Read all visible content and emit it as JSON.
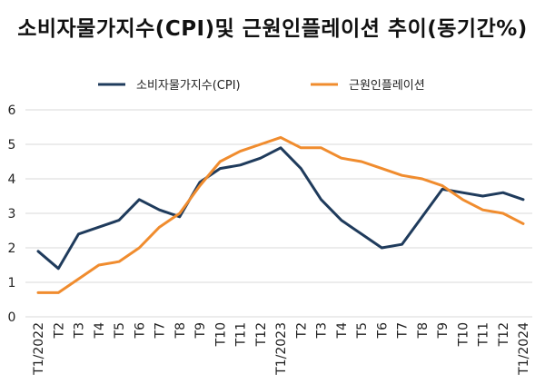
{
  "title": "소비자물가지수(CPI)및  근원인플레이션  추이(동기간%)",
  "chart_data": {
    "type": "line",
    "title": "소비자물가지수(CPI)및  근원인플레이션  추이(동기간%)",
    "categories": [
      "T1/2022",
      "T2",
      "T3",
      "T4",
      "T5",
      "T6",
      "T7",
      "T8",
      "T9",
      "T10",
      "T11",
      "T12",
      "T1/2023",
      "T2",
      "T3",
      "T4",
      "T5",
      "T6",
      "T7",
      "T8",
      "T9",
      "T10",
      "T11",
      "T12",
      "T1/2024"
    ],
    "series": [
      {
        "name": "소비자물가지수(CPI)",
        "color": "#1f3b5c",
        "values": [
          1.9,
          1.4,
          2.4,
          2.6,
          2.8,
          3.4,
          3.1,
          2.9,
          3.9,
          4.3,
          4.4,
          4.6,
          4.9,
          4.3,
          3.4,
          2.8,
          2.4,
          2.0,
          2.1,
          2.9,
          3.7,
          3.6,
          3.5,
          3.6,
          3.4
        ]
      },
      {
        "name": "근원인플레이션",
        "color": "#f08c2e",
        "values": [
          0.7,
          0.7,
          1.1,
          1.5,
          1.6,
          2.0,
          2.6,
          3.0,
          3.8,
          4.5,
          4.8,
          5.0,
          5.2,
          4.9,
          4.9,
          4.6,
          4.5,
          4.3,
          4.1,
          4.0,
          3.8,
          3.4,
          3.1,
          3.0,
          2.7
        ]
      }
    ],
    "yticks": [
      0,
      1,
      2,
      3,
      4,
      5,
      6
    ],
    "ylim": [
      0,
      6
    ],
    "grid": true,
    "legend": "top"
  }
}
